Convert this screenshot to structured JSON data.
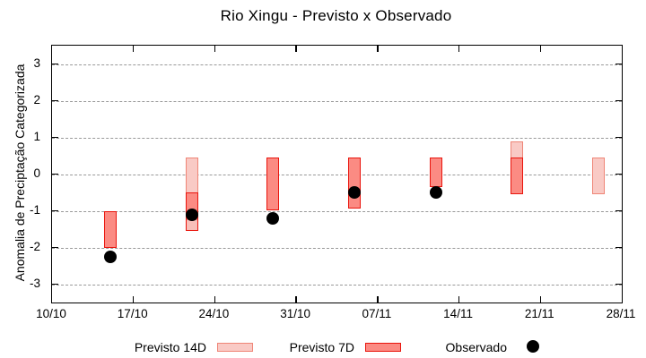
{
  "title": "Rio Xingu - Previsto x Observado",
  "chart_data": {
    "type": "bar",
    "subtype": "forecast-range-boxes-with-observed-dots",
    "title": "Rio Xingu - Previsto x Observado",
    "xlabel": "",
    "ylabel": "Anomalia de Preciptação Categorizada",
    "ylim": [
      -3.5,
      3.5
    ],
    "grid": "horizontal-dashed",
    "legend_position": "below",
    "y_ticks": [
      3,
      2,
      1,
      0,
      -1,
      -2,
      -3
    ],
    "x_span_days": 49,
    "x_ticks": [
      {
        "label": "10/10",
        "day": 0
      },
      {
        "label": "17/10",
        "day": 7
      },
      {
        "label": "24/10",
        "day": 14
      },
      {
        "label": "31/10",
        "day": 21
      },
      {
        "label": "07/11",
        "day": 28
      },
      {
        "label": "14/11",
        "day": 35
      },
      {
        "label": "21/11",
        "day": 42
      },
      {
        "label": "28/11",
        "day": 49
      }
    ],
    "series_legend": [
      {
        "name": "Previsto 14D",
        "swatch": "box",
        "fill": "#f9cac5",
        "border": "#ef8577"
      },
      {
        "name": "Previsto 7D",
        "swatch": "box",
        "fill": "#fb8b83",
        "border": "#e9150d"
      },
      {
        "name": "Observado",
        "swatch": "dot",
        "fill": "#000000"
      }
    ],
    "series_styles": {
      "previsto14d": {
        "fill": "#f9cac5",
        "border": "#ef8577"
      },
      "previsto7d": {
        "fill": "#fb8b83",
        "border": "#e9150d"
      },
      "previsto7d_faded": {
        "fill": "#f8bfb9",
        "border": "#e9150d",
        "no_top_border": true
      },
      "observado": {
        "fill": "#000000"
      }
    },
    "bars": [
      {
        "date": "15/10",
        "day": 5,
        "segments": [
          {
            "series": "previsto7d",
            "top": -1.0,
            "bottom": -2.0
          }
        ],
        "observed": -2.25
      },
      {
        "date": "22/10",
        "day": 12,
        "segments": [
          {
            "series": "previsto14d",
            "top": 0.45,
            "bottom": -0.5
          },
          {
            "series": "previsto7d",
            "top": -0.5,
            "bottom": -1.25
          },
          {
            "series": "previsto7d_faded",
            "top": -1.25,
            "bottom": -1.55
          }
        ],
        "observed": -1.1
      },
      {
        "date": "29/10",
        "day": 19,
        "segments": [
          {
            "series": "previsto7d",
            "top": 0.45,
            "bottom": -1.0
          }
        ],
        "observed": -1.2
      },
      {
        "date": "05/11",
        "day": 26,
        "segments": [
          {
            "series": "previsto7d",
            "top": 0.45,
            "bottom": -0.95
          }
        ],
        "observed": -0.5
      },
      {
        "date": "12/11",
        "day": 33,
        "segments": [
          {
            "series": "previsto7d",
            "top": 0.45,
            "bottom": -0.35
          }
        ],
        "observed": -0.5
      },
      {
        "date": "19/11",
        "day": 40,
        "segments": [
          {
            "series": "previsto14d",
            "top": 0.9,
            "bottom": 0.45
          },
          {
            "series": "previsto7d",
            "top": 0.45,
            "bottom": -0.55
          }
        ],
        "observed": null
      },
      {
        "date": "26/11",
        "day": 47,
        "segments": [
          {
            "series": "previsto14d",
            "top": 0.45,
            "bottom": -0.55
          }
        ],
        "observed": null
      }
    ],
    "colors": {
      "background": "#ffffff",
      "axis": "#000000",
      "grid": "#999999",
      "text": "#000000"
    }
  }
}
